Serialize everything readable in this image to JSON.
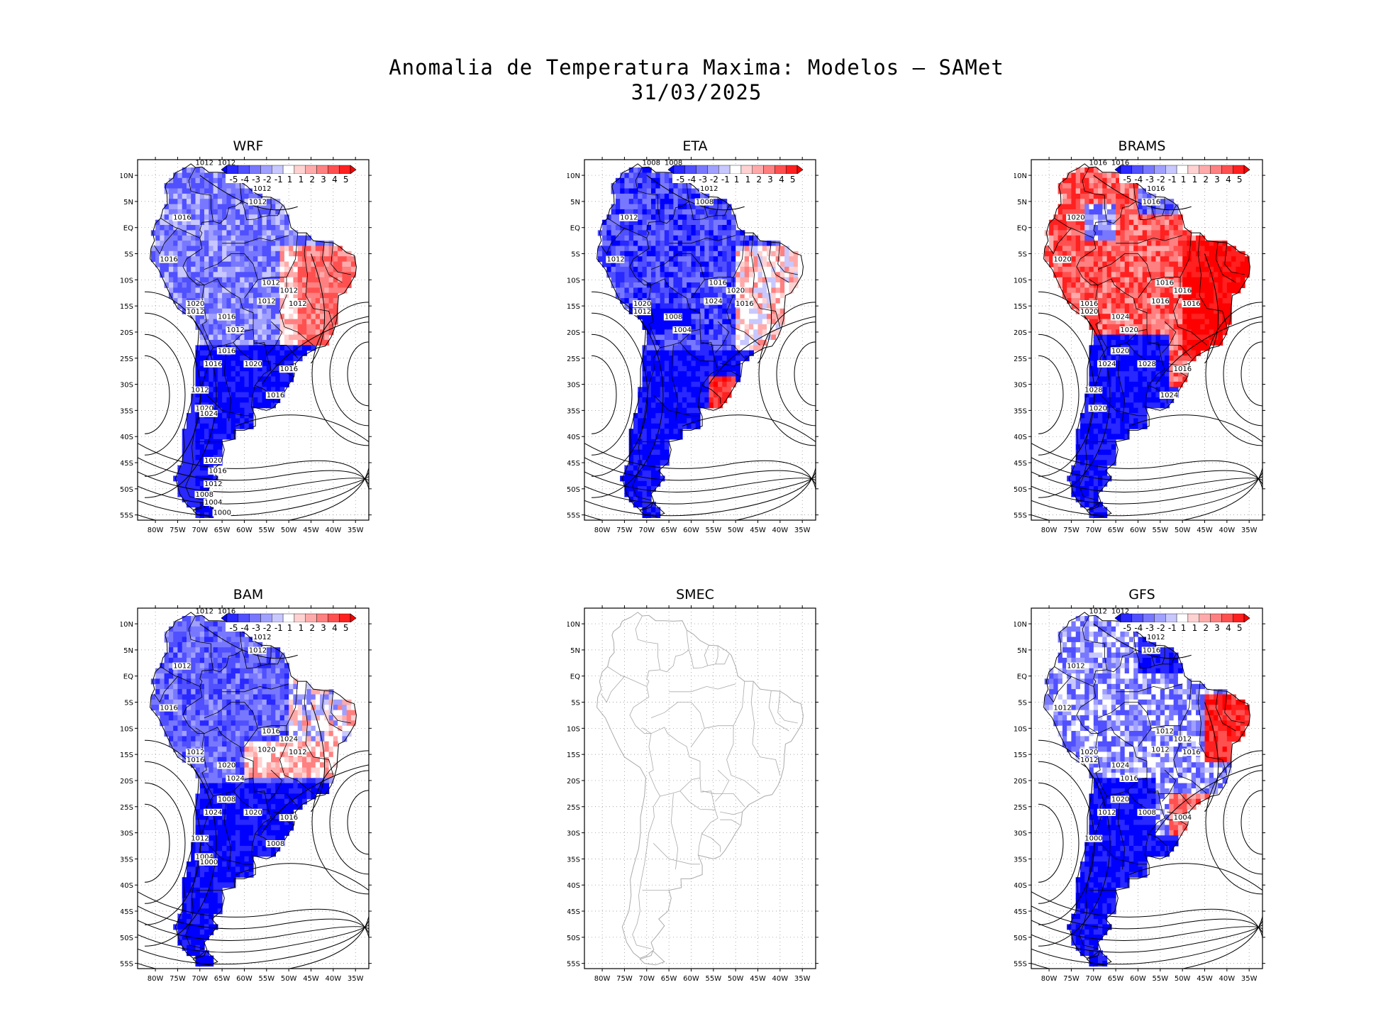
{
  "title": {
    "line1": "Anomalia de Temperatura Maxima: Modelos — SAMet",
    "line2": "31/03/2025"
  },
  "axes": {
    "lat_labels": [
      "10N",
      "5N",
      "EQ",
      "5S",
      "10S",
      "15S",
      "20S",
      "25S",
      "30S",
      "35S",
      "40S",
      "45S",
      "50S",
      "55S"
    ],
    "lon_labels": [
      "80W",
      "75W",
      "70W",
      "65W",
      "60W",
      "55W",
      "50W",
      "45W",
      "40W",
      "35W"
    ]
  },
  "colorbar": {
    "labels": [
      "-5",
      "-4",
      "-3",
      "-2",
      "-1",
      "1",
      "1",
      "2",
      "3",
      "4",
      "5"
    ],
    "colors": [
      "#0000ff",
      "#2828ff",
      "#5050ff",
      "#7878ff",
      "#a0a0ff",
      "#c8c8ff",
      "#ffffff",
      "#ffd2d2",
      "#ffaaaa",
      "#ff8080",
      "#ff5050",
      "#ff2020",
      "#ff0000"
    ]
  },
  "panels": [
    {
      "id": "wrf",
      "name": "WRF",
      "has_data": true,
      "isobar_labels": [
        "1012",
        "1012",
        "1012",
        "1012",
        "1016",
        "1016",
        "1012",
        "1012",
        "1012",
        "1012",
        "1020",
        "1012",
        "1016",
        "1012",
        "1016",
        "1016",
        "1020",
        "1016",
        "1012",
        "1016",
        "1020",
        "1024",
        "1020",
        "1016",
        "1012",
        "1008",
        "1004",
        "1000"
      ]
    },
    {
      "id": "eta",
      "name": "ETA",
      "has_data": true,
      "isobar_labels": [
        "1008",
        "1008",
        "1012",
        "1008",
        "1012",
        "1012",
        "1016",
        "1020",
        "1024",
        "1016",
        "1020",
        "1012",
        "1008",
        "1004"
      ]
    },
    {
      "id": "brams",
      "name": "BRAMS",
      "has_data": true,
      "isobar_labels": [
        "1016",
        "1016",
        "1016",
        "1016",
        "1020",
        "1020",
        "1016",
        "1016",
        "1016",
        "1016",
        "1016",
        "1020",
        "1024",
        "1020",
        "1020",
        "1024",
        "1028",
        "1016",
        "1028",
        "1024",
        "1020"
      ]
    },
    {
      "id": "bam",
      "name": "BAM",
      "has_data": true,
      "isobar_labels": [
        "1012",
        "1016",
        "1012",
        "1012",
        "1012",
        "1016",
        "1016",
        "1024",
        "1020",
        "1012",
        "1012",
        "1016",
        "1020",
        "1024",
        "1008",
        "1024",
        "1020",
        "1016",
        "1012",
        "1008",
        "1004",
        "1000"
      ]
    },
    {
      "id": "smec",
      "name": "SMEC",
      "has_data": false,
      "isobar_labels": []
    },
    {
      "id": "gfs",
      "name": "GFS",
      "has_data": true,
      "isobar_labels": [
        "1012",
        "1012",
        "1012",
        "1016",
        "1012",
        "1012",
        "1012",
        "1012",
        "1012",
        "1016",
        "1020",
        "1012",
        "1024",
        "1016",
        "1020",
        "1012",
        "1008",
        "1004",
        "1000"
      ]
    }
  ]
}
